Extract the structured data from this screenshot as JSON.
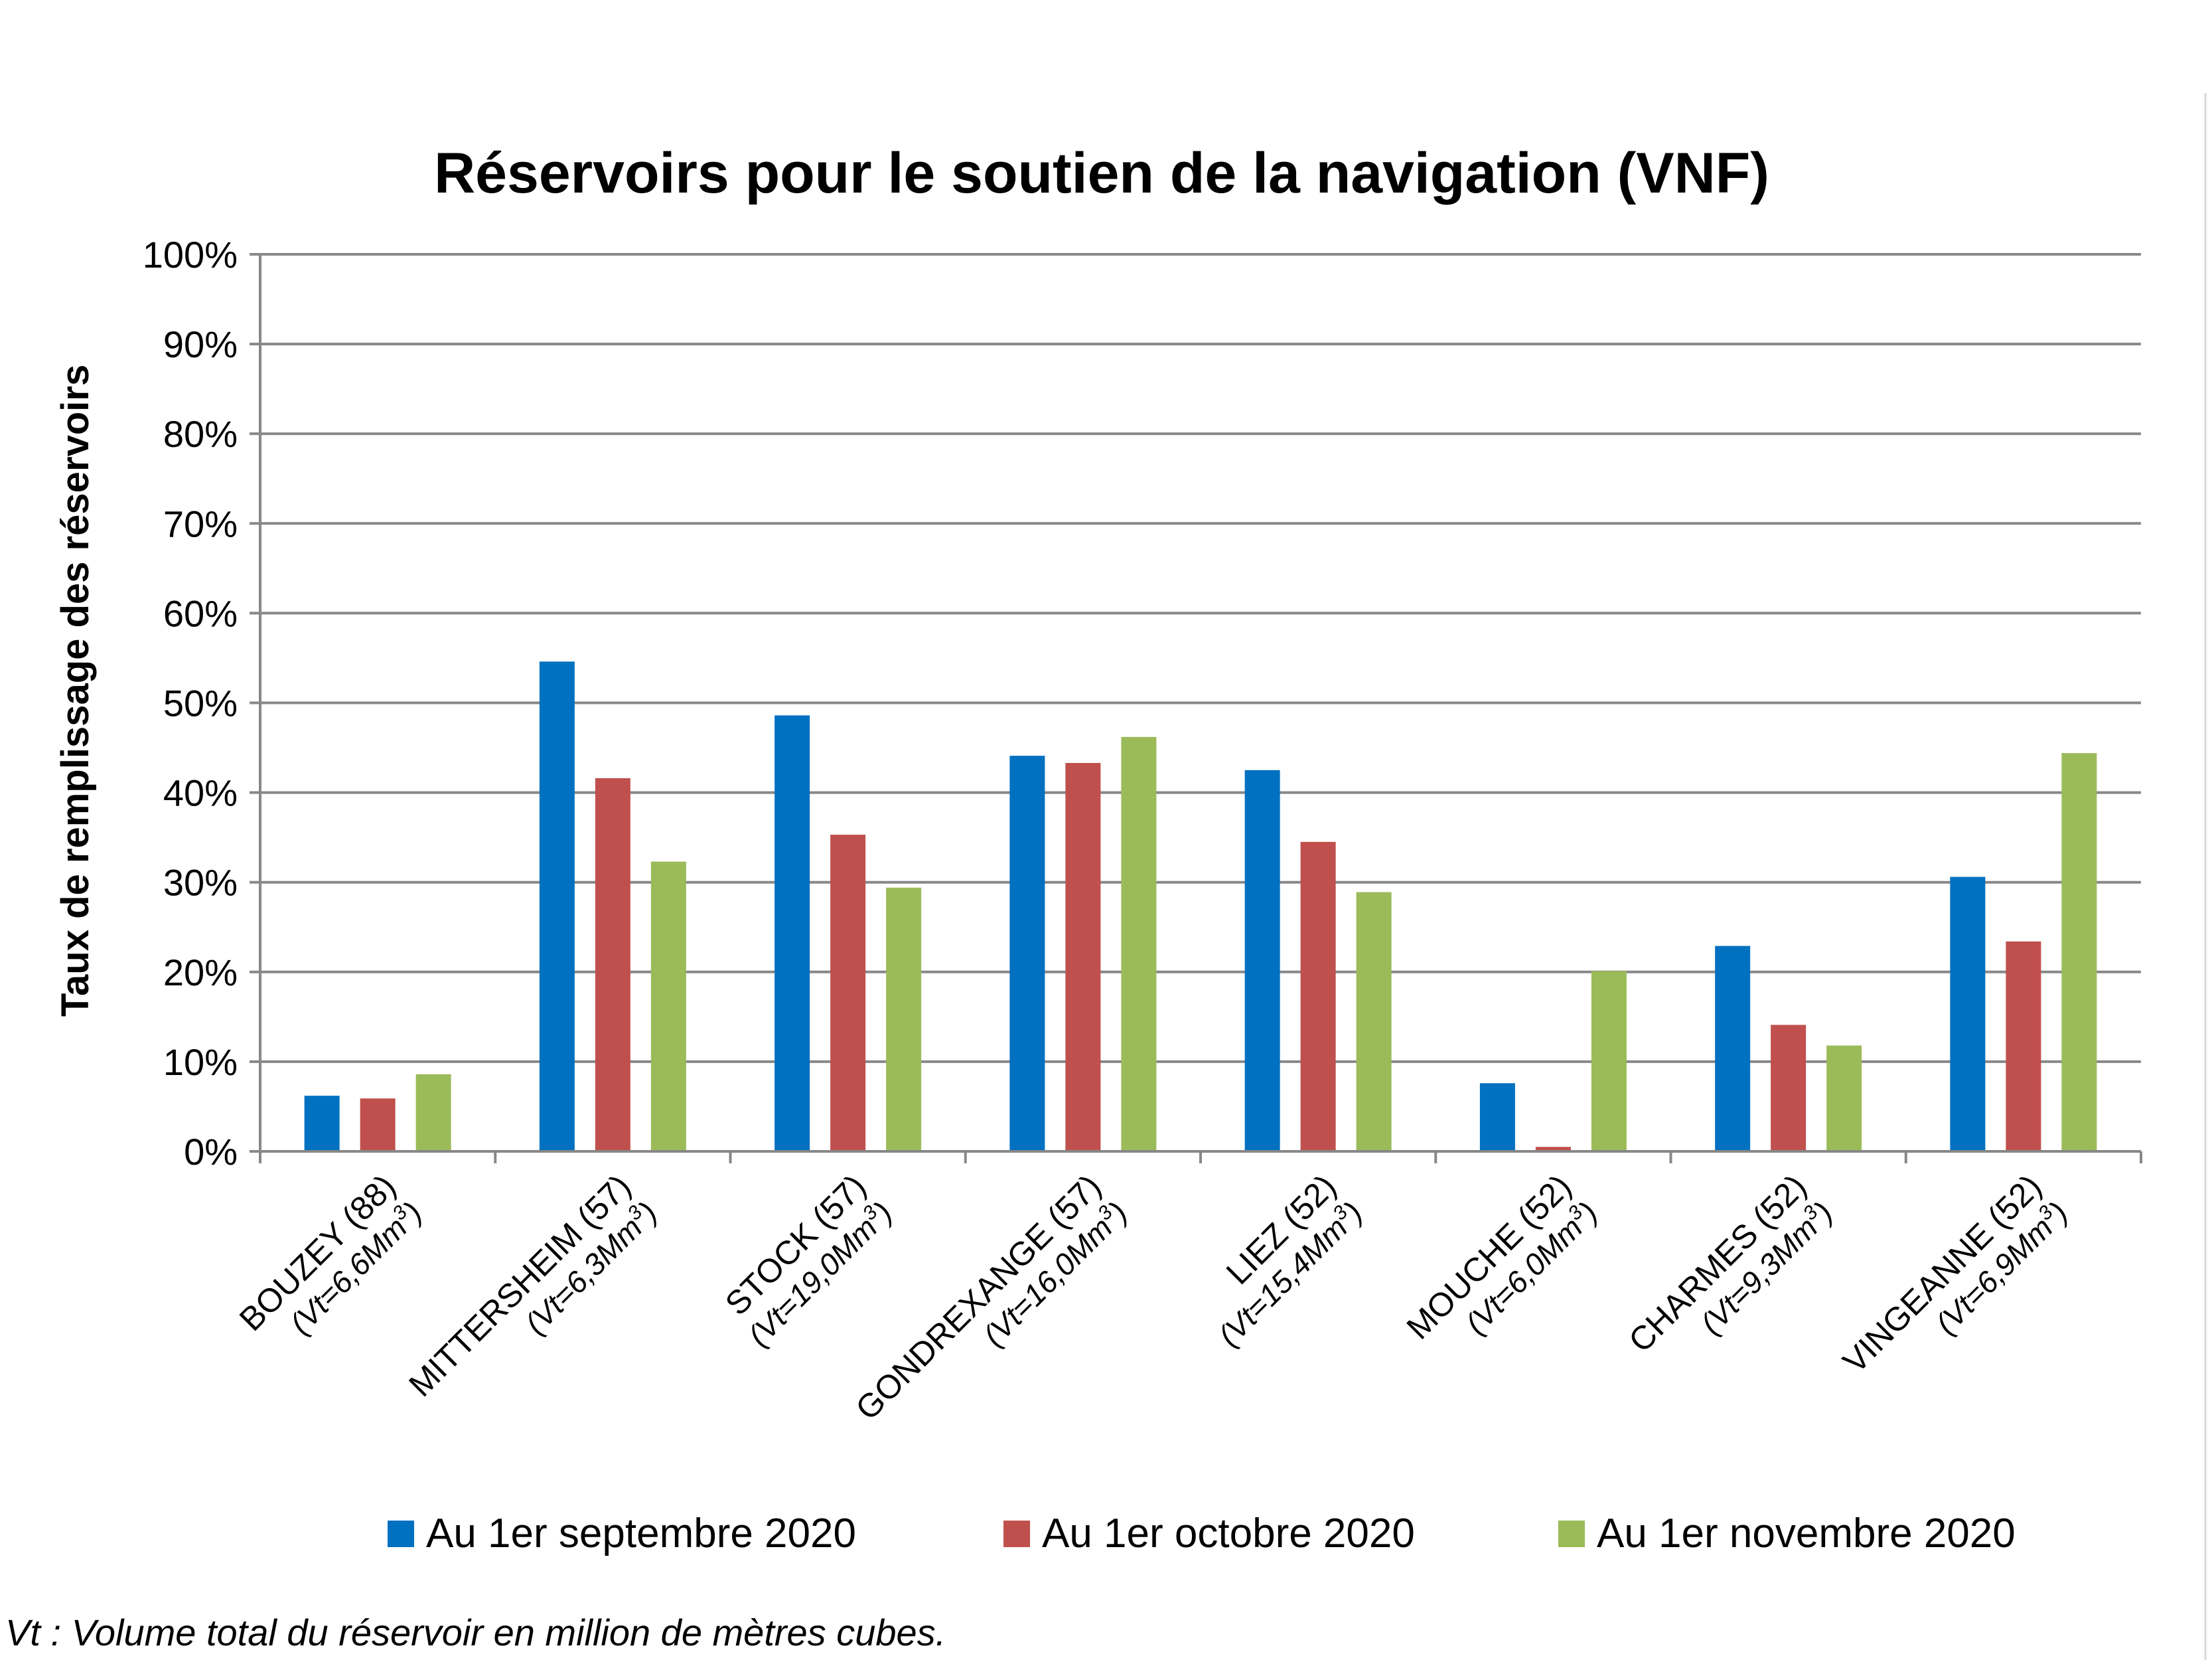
{
  "chart_data": {
    "type": "bar",
    "title": "Réservoirs pour le soutien de la navigation (VNF)",
    "ylabel": "Taux de remplissage des réservoirs",
    "xlabel": "",
    "ylim": [
      0,
      100
    ],
    "y_ticks": [
      "0%",
      "10%",
      "20%",
      "30%",
      "40%",
      "50%",
      "60%",
      "70%",
      "80%",
      "90%",
      "100%"
    ],
    "grid": true,
    "legend_position": "bottom",
    "categories": [
      {
        "name": "BOUZEY (88)",
        "vt": "(Vt=6,6Mm",
        "vt_sup": "3",
        "vt_end": ")"
      },
      {
        "name": "MITTERSHEIM (57)",
        "vt": "(Vt=6,3Mm",
        "vt_sup": "3",
        "vt_end": ")"
      },
      {
        "name": "STOCK (57)",
        "vt": "(Vt=19,0Mm",
        "vt_sup": "3",
        "vt_end": ")"
      },
      {
        "name": "GONDREXANGE (57)",
        "vt": "(Vt=16,0Mm",
        "vt_sup": "3",
        "vt_end": ")"
      },
      {
        "name": "LIEZ (52)",
        "vt": "(Vt=15,4Mm",
        "vt_sup": "3",
        "vt_end": ")"
      },
      {
        "name": "MOUCHE (52)",
        "vt": "(Vt=6,0Mm",
        "vt_sup": "3",
        "vt_end": ")"
      },
      {
        "name": "CHARMES (52)",
        "vt": "(Vt=9,3Mm",
        "vt_sup": "3",
        "vt_end": ")"
      },
      {
        "name": "VINGEANNE (52)",
        "vt": "(Vt=6,9Mm",
        "vt_sup": "3",
        "vt_end": ")"
      }
    ],
    "series": [
      {
        "name": "Au 1er septembre 2020",
        "color": "#0070C0",
        "values": [
          6.2,
          54.6,
          48.6,
          44.1,
          42.5,
          7.6,
          22.9,
          30.6
        ]
      },
      {
        "name": "Au 1er octobre 2020",
        "color": "#C0504D",
        "values": [
          5.9,
          41.6,
          35.3,
          43.3,
          34.5,
          0.5,
          14.1,
          23.4
        ]
      },
      {
        "name": "Au 1er novembre 2020",
        "color": "#9BBB59",
        "values": [
          8.6,
          32.3,
          29.4,
          46.2,
          28.9,
          20.1,
          11.8,
          44.4
        ]
      }
    ],
    "footnote": "Vt : Volume total du réservoir en million de mètres cubes."
  }
}
